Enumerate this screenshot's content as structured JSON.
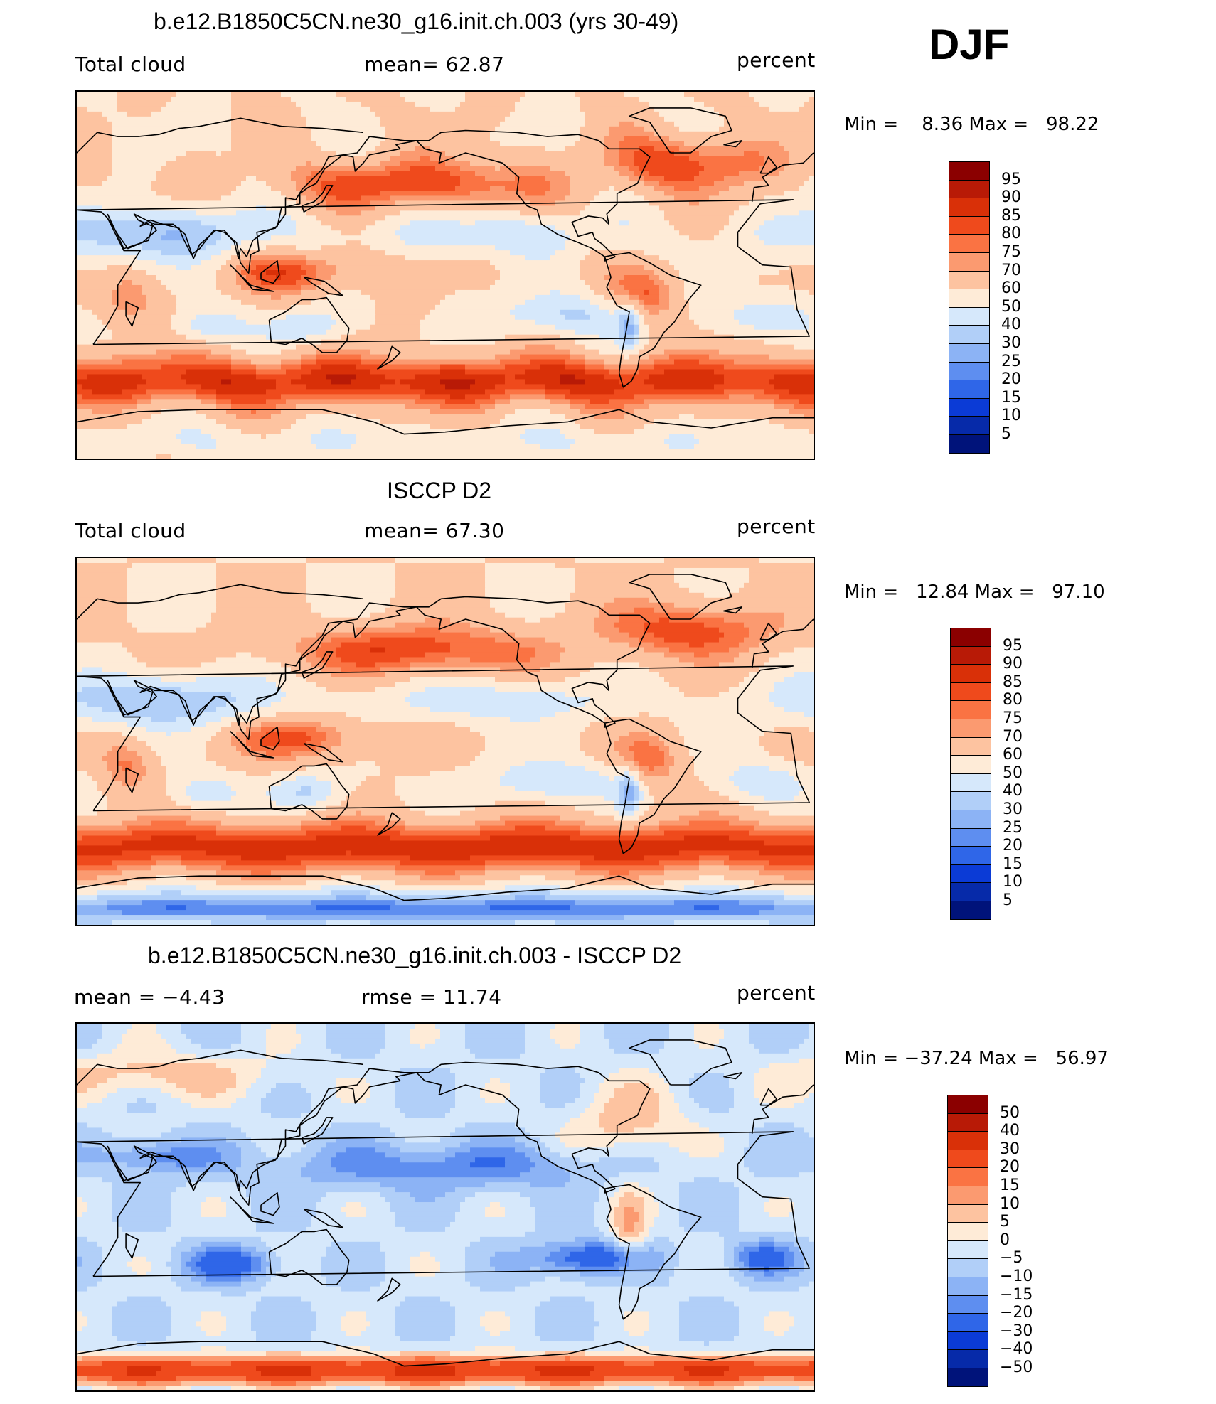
{
  "season": "DJF",
  "panels": [
    {
      "title": "b.e12.B1850C5CN.ne30_g16.init.ch.003 (yrs 30-49)",
      "left_label": "Total cloud",
      "mid_label": "mean=   62.87",
      "right_label": "percent",
      "minmax": "Min =    8.36 Max =   98.22",
      "legend_levels": [
        "95",
        "90",
        "85",
        "80",
        "75",
        "70",
        "60",
        "50",
        "40",
        "30",
        "25",
        "20",
        "15",
        "10",
        "5"
      ],
      "legend_colors": [
        "#8b0000",
        "#b81a06",
        "#d93008",
        "#ef4a1c",
        "#fa7343",
        "#fb9a70",
        "#fdc3a0",
        "#feebd7",
        "#d6e8fb",
        "#b1cff8",
        "#8cb3f5",
        "#5e8ef0",
        "#2f66e8",
        "#0b3bd6",
        "#062aa9",
        "#00137a"
      ],
      "map_mode": "model"
    },
    {
      "title": "ISCCP D2",
      "left_label": "Total cloud",
      "mid_label": "mean=   67.30",
      "right_label": "percent",
      "minmax": "Min =   12.84 Max =   97.10",
      "legend_levels": [
        "95",
        "90",
        "85",
        "80",
        "75",
        "70",
        "60",
        "50",
        "40",
        "30",
        "25",
        "20",
        "15",
        "10",
        "5"
      ],
      "legend_colors": [
        "#8b0000",
        "#b81a06",
        "#d93008",
        "#ef4a1c",
        "#fa7343",
        "#fb9a70",
        "#fdc3a0",
        "#feebd7",
        "#d6e8fb",
        "#b1cff8",
        "#8cb3f5",
        "#5e8ef0",
        "#2f66e8",
        "#0b3bd6",
        "#062aa9",
        "#00137a"
      ],
      "map_mode": "obs"
    },
    {
      "title": "b.e12.B1850C5CN.ne30_g16.init.ch.003 - ISCCP D2",
      "left_label": "mean =   −4.43",
      "mid_label": "rmse =   11.74",
      "right_label": "percent",
      "minmax": "Min = −37.24 Max =   56.97",
      "legend_levels": [
        "50",
        "40",
        "30",
        "20",
        "15",
        "10",
        "5",
        "0",
        "−5",
        "−10",
        "−15",
        "−20",
        "−30",
        "−40",
        "−50"
      ],
      "legend_colors": [
        "#8b0000",
        "#b81a06",
        "#d93008",
        "#ef4a1c",
        "#fa7343",
        "#fb9a70",
        "#fdc3a0",
        "#feebd7",
        "#d6e8fb",
        "#b1cff8",
        "#8cb3f5",
        "#5e8ef0",
        "#2f66e8",
        "#0b3bd6",
        "#062aa9",
        "#00137a"
      ],
      "map_mode": "diff"
    }
  ]
}
